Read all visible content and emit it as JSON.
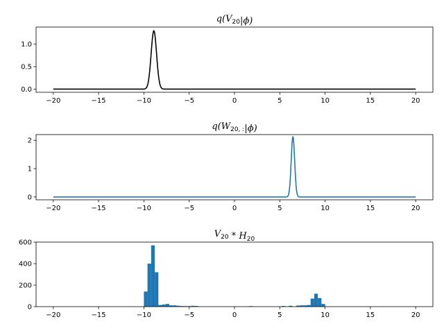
{
  "chart_data": [
    {
      "type": "line",
      "title_parts": [
        {
          "t": "q(V",
          "italic": true
        },
        {
          "t": "20",
          "sub": true
        },
        {
          "t": "|ϕ)",
          "italic": true
        }
      ],
      "xlabel": "",
      "ylabel": "",
      "xlim": [
        -21.9,
        21.9
      ],
      "ylim": [
        -0.07,
        1.38
      ],
      "xticks": [
        -20,
        -15,
        -10,
        -5,
        0,
        5,
        10,
        15,
        20
      ],
      "yticks": [
        0.0,
        0.5,
        1.0
      ],
      "ytick_labels": [
        "0.0",
        "0.5",
        "1.0"
      ],
      "series": [
        {
          "color": "#000000",
          "gaussian": {
            "mean": -8.9,
            "sd": 0.3,
            "peak": 1.3
          },
          "x_range": [
            -20,
            20
          ]
        }
      ],
      "grid": false
    },
    {
      "type": "line",
      "title_parts": [
        {
          "t": "q(W",
          "italic": true
        },
        {
          "t": "20, :",
          "sub": true
        },
        {
          "t": "|ϕ)",
          "italic": true
        }
      ],
      "xlabel": "",
      "ylabel": "",
      "xlim": [
        -21.9,
        21.9
      ],
      "ylim": [
        -0.1,
        2.2
      ],
      "xticks": [
        -20,
        -15,
        -10,
        -5,
        0,
        5,
        10,
        15,
        20
      ],
      "yticks": [
        0,
        1,
        2
      ],
      "ytick_labels": [
        "0",
        "1",
        "2"
      ],
      "series": [
        {
          "color": "#1f77b4",
          "gaussian": {
            "mean": 6.45,
            "sd": 0.19,
            "peak": 2.13
          },
          "x_range": [
            -20,
            20
          ]
        }
      ],
      "grid": false
    },
    {
      "type": "bar",
      "title_parts": [
        {
          "t": "V",
          "italic": true
        },
        {
          "t": "20",
          "sub": true
        },
        {
          "t": " * ",
          "italic": false
        },
        {
          "t": "H",
          "italic": true
        },
        {
          "t": "20",
          "sub": true
        }
      ],
      "xlabel": "",
      "ylabel": "",
      "xlim": [
        -21.9,
        21.9
      ],
      "ylim": [
        0,
        600
      ],
      "xticks": [
        -20,
        -15,
        -10,
        -5,
        0,
        5,
        10,
        15,
        20
      ],
      "yticks": [
        0,
        200,
        400,
        600
      ],
      "ytick_labels": [
        "0",
        "200",
        "400",
        "600"
      ],
      "bin_width": 0.4,
      "color": "#1f77b4",
      "bins": [
        {
          "x": -9.8,
          "y": 140
        },
        {
          "x": -9.4,
          "y": 400
        },
        {
          "x": -9.0,
          "y": 570
        },
        {
          "x": -8.6,
          "y": 320
        },
        {
          "x": -8.2,
          "y": 15
        },
        {
          "x": -7.8,
          "y": 20
        },
        {
          "x": -7.4,
          "y": 25
        },
        {
          "x": -7.0,
          "y": 12
        },
        {
          "x": -6.6,
          "y": 12
        },
        {
          "x": -6.2,
          "y": 8
        },
        {
          "x": -5.8,
          "y": 6
        },
        {
          "x": -5.4,
          "y": 5
        },
        {
          "x": -5.0,
          "y": 5
        },
        {
          "x": -4.6,
          "y": 8
        },
        {
          "x": -4.2,
          "y": 6
        },
        {
          "x": 1.8,
          "y": 5
        },
        {
          "x": 5.4,
          "y": 6
        },
        {
          "x": 6.2,
          "y": 8
        },
        {
          "x": 7.0,
          "y": 10
        },
        {
          "x": 7.4,
          "y": 12
        },
        {
          "x": 7.8,
          "y": 12
        },
        {
          "x": 8.2,
          "y": 15
        },
        {
          "x": 8.6,
          "y": 75
        },
        {
          "x": 9.0,
          "y": 120
        },
        {
          "x": 9.4,
          "y": 80
        },
        {
          "x": 9.8,
          "y": 25
        }
      ],
      "grid": false
    }
  ]
}
